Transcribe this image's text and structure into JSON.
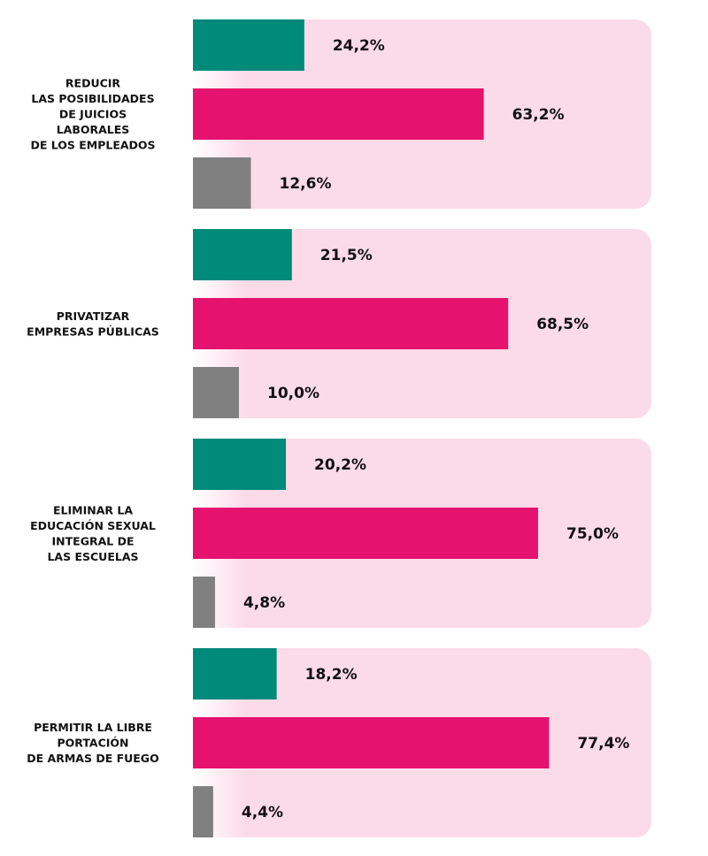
{
  "chart_data": {
    "type": "bar",
    "orientation": "horizontal",
    "xlim": [
      0,
      100
    ],
    "grid": false,
    "categories": [
      [
        "REDUCIR",
        "LAS POSIBILIDADES",
        "DE JUICIOS",
        "LABORALES",
        "DE LOS EMPLEADOS"
      ],
      [
        "PRIVATIZAR",
        "EMPRESAS PÚBLICAS"
      ],
      [
        "ELIMINAR LA",
        "EDUCACIÓN SEXUAL",
        "INTEGRAL DE",
        "LAS ESCUELAS"
      ],
      [
        "PERMITIR LA LIBRE",
        "PORTACIÓN",
        "DE ARMAS DE FUEGO"
      ]
    ],
    "series": [
      {
        "color": "#008a7a",
        "values": [
          24.2,
          21.5,
          20.2,
          18.2
        ],
        "labels": [
          "24,2%",
          "21,5%",
          "20,2%",
          "18,2%"
        ]
      },
      {
        "color": "#e5126f",
        "values": [
          63.2,
          68.5,
          75.0,
          77.4
        ],
        "labels": [
          "63,2%",
          "68,5%",
          "75,0%",
          "77,4%"
        ]
      },
      {
        "color": "#808080",
        "values": [
          12.6,
          10.0,
          4.8,
          4.4
        ],
        "labels": [
          "12,6%",
          "10,0%",
          "4,8%",
          "4,4%"
        ]
      }
    ],
    "panel_color": "#fbdbe8"
  }
}
